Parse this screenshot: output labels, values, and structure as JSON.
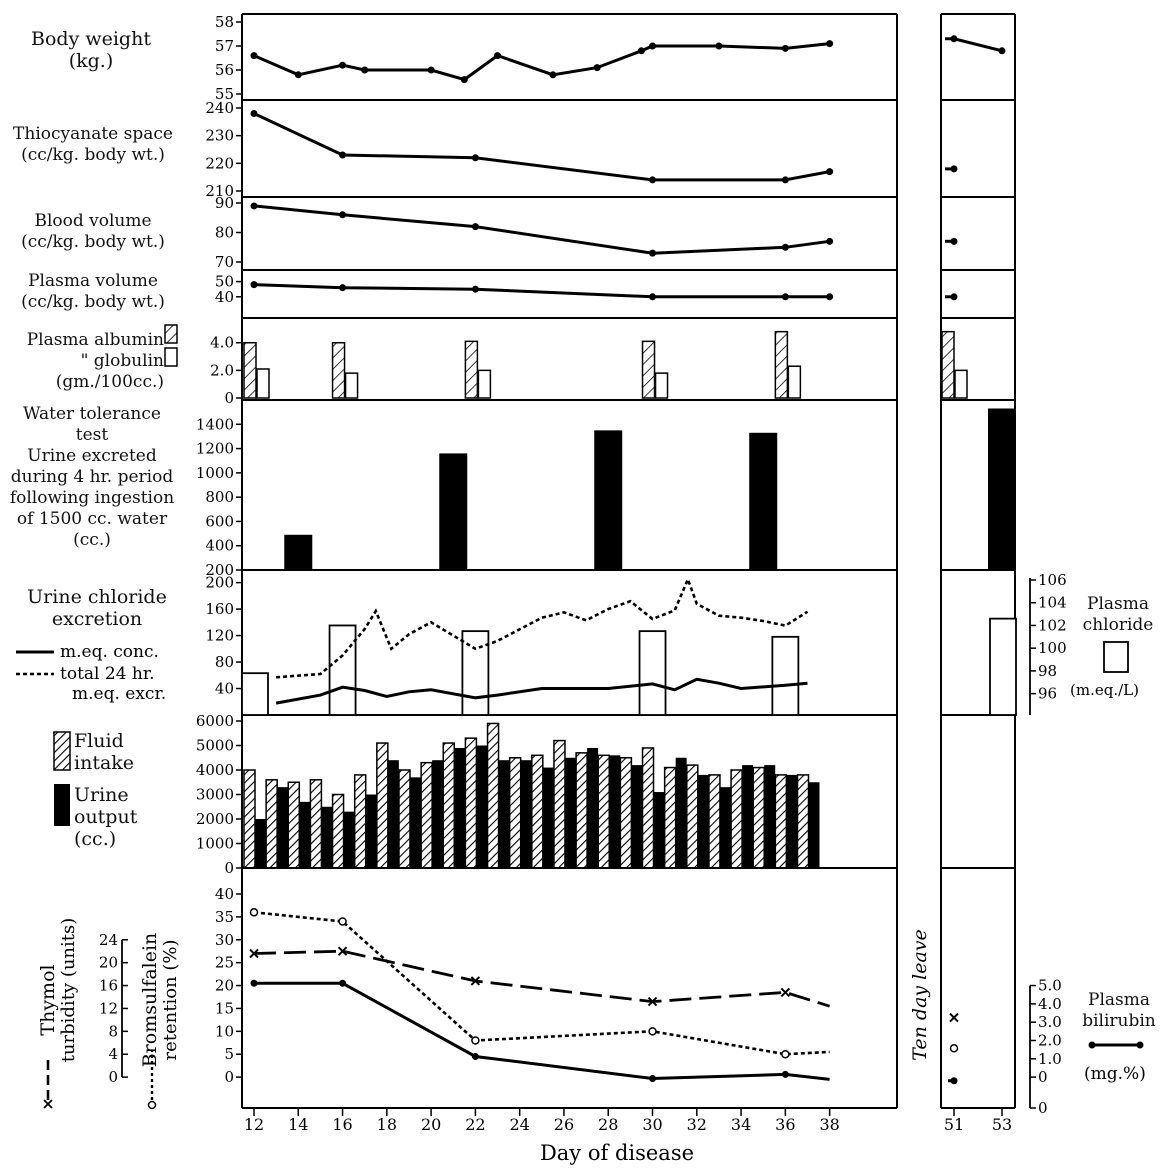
{
  "x_axis": {
    "label": "Day of disease",
    "ticks": [
      "12",
      "14",
      "16",
      "18",
      "20",
      "22",
      "24",
      "26",
      "28",
      "30",
      "32",
      "34",
      "36",
      "38"
    ],
    "leave_ticks": [
      "51",
      "53"
    ],
    "leave_label": "Ten day leave"
  },
  "labels": {
    "body_weight": [
      "Body weight",
      "(kg.)"
    ],
    "thiocyanate": [
      "Thiocyanate space",
      "(cc/kg. body wt.)"
    ],
    "blood_volume": [
      "Blood volume",
      "(cc/kg. body wt.)"
    ],
    "plasma_volume": [
      "Plasma volume",
      "(cc/kg. body wt.)"
    ],
    "albumin": [
      "Plasma albumin",
      "\"     globulin",
      "(gm./100cc.)"
    ],
    "water": [
      "Water tolerance",
      "test",
      "Urine excreted",
      "during 4 hr. period",
      "following ingestion",
      "of 1500 cc. water",
      "(cc.)"
    ],
    "chloride": [
      "Urine chloride",
      "excretion",
      "m.eq. conc.",
      "total 24 hr.",
      "m.eq. excr."
    ],
    "plasma_chloride": [
      "Plasma",
      "chloride",
      "(m.eq./L)"
    ],
    "fluid": [
      "Fluid",
      "intake",
      "Urine",
      "output",
      "(cc.)"
    ],
    "thymol": [
      "Thymol",
      "turbidity (units)"
    ],
    "bsp": [
      "Bromsulfalein",
      "retention (%)"
    ],
    "bilirubin": [
      "Plasma",
      "bilirubin",
      "(mg.%)"
    ]
  },
  "chart_data": [
    {
      "type": "line",
      "panel": "Body weight (kg.)",
      "ylim": [
        55,
        58
      ],
      "yticks": [
        "55",
        "56",
        "57",
        "58"
      ],
      "series": [
        {
          "x": [
            12,
            14,
            16,
            17,
            20,
            21.5,
            23,
            25.5,
            27.5,
            29.5,
            30,
            33,
            36,
            38
          ],
          "y": [
            56.6,
            55.8,
            56.2,
            56.0,
            56.0,
            55.6,
            56.6,
            55.8,
            56.1,
            56.8,
            57.0,
            57.0,
            56.9,
            57.1
          ]
        }
      ],
      "leave": {
        "x": [
          50,
          51,
          53
        ],
        "y": [
          57.3,
          57.3,
          56.8
        ]
      }
    },
    {
      "type": "line",
      "panel": "Thiocyanate space (cc/kg. body wt.)",
      "ylim": [
        210,
        240
      ],
      "yticks": [
        "210",
        "220",
        "230",
        "240"
      ],
      "series": [
        {
          "x": [
            12,
            16,
            22,
            30,
            36,
            38
          ],
          "y": [
            238,
            223,
            222,
            214,
            214,
            217
          ]
        }
      ],
      "leave": {
        "x": [
          50,
          51
        ],
        "y": [
          218,
          218
        ]
      }
    },
    {
      "type": "line",
      "panel": "Blood volume (cc/kg. body wt.)",
      "ylim": [
        70,
        90
      ],
      "yticks": [
        "70",
        "80",
        "90"
      ],
      "series": [
        {
          "x": [
            12,
            16,
            22,
            30,
            36,
            38
          ],
          "y": [
            89,
            86,
            82,
            73,
            75,
            77
          ]
        }
      ],
      "leave": {
        "x": [
          50,
          51
        ],
        "y": [
          77,
          77
        ]
      }
    },
    {
      "type": "line",
      "panel": "Plasma volume (cc/kg. body wt.)",
      "ylim": [
        30,
        55
      ],
      "yticks": [
        "40",
        "50"
      ],
      "series": [
        {
          "x": [
            12,
            16,
            22,
            30,
            36,
            38
          ],
          "y": [
            48,
            46,
            45,
            40,
            40,
            40
          ]
        }
      ],
      "leave": {
        "x": [
          50,
          51
        ],
        "y": [
          40,
          40
        ]
      }
    },
    {
      "type": "bar",
      "panel": "Plasma albumin / globulin (gm./100cc.)",
      "ylim": [
        0,
        5.5
      ],
      "yticks": [
        "0",
        "2.0",
        "4.0"
      ],
      "series": [
        {
          "name": "albumin",
          "x": [
            12,
            16,
            22,
            30,
            36
          ],
          "values": [
            4.0,
            4.0,
            4.1,
            4.1,
            4.8
          ]
        },
        {
          "name": "globulin",
          "x": [
            12,
            16,
            22,
            30,
            36
          ],
          "values": [
            2.1,
            1.8,
            2.0,
            1.8,
            2.3
          ]
        }
      ],
      "leave": {
        "albumin": 4.8,
        "globulin": 2.0
      }
    },
    {
      "type": "bar",
      "panel": "Water tolerance test (cc.)",
      "ylim": [
        200,
        1600
      ],
      "yticks": [
        "200",
        "400",
        "600",
        "800",
        "1000",
        "1200",
        "1400"
      ],
      "series": [
        {
          "x": [
            14,
            21,
            28,
            35
          ],
          "values": [
            490,
            1160,
            1350,
            1330
          ]
        }
      ],
      "leave": {
        "x": 53,
        "value": 1530
      }
    },
    {
      "type": "line",
      "panel": "Urine chloride excretion",
      "ylim": [
        0,
        210
      ],
      "yticks": [
        "40",
        "80",
        "120",
        "160",
        "200"
      ],
      "series": [
        {
          "name": "m.eq. conc.",
          "x": [
            13,
            15,
            16,
            17,
            18,
            19,
            20,
            22,
            23,
            25,
            28,
            30,
            31,
            32,
            33,
            34,
            36,
            37
          ],
          "y": [
            18,
            30,
            42,
            37,
            28,
            35,
            38,
            26,
            30,
            40,
            40,
            47,
            38,
            54,
            48,
            40,
            45,
            48
          ]
        },
        {
          "name": "total 24 hr. m.eq. excr.",
          "x": [
            13,
            15,
            16,
            17,
            17.5,
            18.2,
            19,
            20,
            22,
            23,
            25,
            26,
            27,
            28,
            29,
            30,
            31,
            31.6,
            32,
            33,
            34,
            35,
            36,
            37
          ],
          "y": [
            57,
            62,
            90,
            130,
            157,
            100,
            122,
            140,
            100,
            112,
            147,
            155,
            143,
            160,
            172,
            145,
            158,
            205,
            168,
            150,
            147,
            142,
            135,
            156
          ]
        }
      ],
      "plasma_chloride": {
        "ylim": [
          95,
          106
        ],
        "yticks": [
          "96",
          "98",
          "100",
          "102",
          "104",
          "106"
        ],
        "x": [
          12,
          16,
          22,
          30,
          36
        ],
        "values": [
          97.8,
          102,
          101.5,
          101.5,
          101
        ],
        "leave": 102.6
      }
    },
    {
      "type": "bar",
      "panel": "Fluid intake / Urine output (cc.)",
      "ylim": [
        0,
        6000
      ],
      "yticks": [
        "0",
        "1000",
        "2000",
        "3000",
        "4000",
        "5000",
        "6000"
      ],
      "categories": [
        "12",
        "13",
        "14",
        "15",
        "16",
        "17",
        "18",
        "19",
        "20",
        "21",
        "22",
        "23",
        "24",
        "25",
        "26",
        "27",
        "28",
        "29",
        "30",
        "31",
        "32",
        "33",
        "34",
        "35",
        "36",
        "37"
      ],
      "series": [
        {
          "name": "Fluid intake",
          "values": [
            4000,
            3600,
            3500,
            3600,
            3000,
            3800,
            5100,
            4000,
            4300,
            5100,
            5300,
            5900,
            4500,
            4600,
            5200,
            4700,
            4600,
            4500,
            4900,
            4100,
            4200,
            3800,
            4000,
            4100,
            3800,
            3800
          ]
        },
        {
          "name": "Urine output",
          "values": [
            2000,
            3300,
            2700,
            2500,
            2300,
            3000,
            4400,
            3700,
            4400,
            4900,
            5000,
            4400,
            4400,
            4100,
            4500,
            4900,
            4600,
            4200,
            3100,
            4500,
            3800,
            3300,
            4200,
            4200,
            3800,
            3500
          ]
        }
      ]
    },
    {
      "type": "line",
      "panel": "Thymol / Bromsulfalein / Bilirubin",
      "ylim": [
        -5,
        40
      ],
      "yticks": [
        "0",
        "5",
        "10",
        "15",
        "20",
        "25",
        "30",
        "35",
        "40"
      ],
      "thymol": {
        "yticks": [
          "0",
          "4",
          "8",
          "12",
          "16",
          "20",
          "24"
        ]
      },
      "bilirubin": {
        "yticks": [
          "0",
          "1.0",
          "2.0",
          "3.0",
          "4.0",
          "5.0"
        ]
      },
      "series": [
        {
          "name": "Thymol turbidity (units)",
          "x": [
            12,
            16,
            22,
            30,
            36,
            38
          ],
          "y": [
            27,
            27.5,
            21,
            16.5,
            18.5,
            15.5
          ]
        },
        {
          "name": "Bromsulfalein retention (%)",
          "x": [
            12,
            16,
            22,
            30,
            36,
            38
          ],
          "y": [
            36,
            34,
            8,
            10,
            5,
            5.5
          ]
        },
        {
          "name": "Plasma bilirubin",
          "x": [
            12,
            16,
            22,
            30,
            36,
            38
          ],
          "y": [
            20.5,
            20.5,
            4.5,
            -0.3,
            0.6,
            -0.5
          ]
        }
      ],
      "leave": {
        "thymol": 13,
        "bsp": 6.3,
        "bilirubin": -0.8
      }
    }
  ]
}
